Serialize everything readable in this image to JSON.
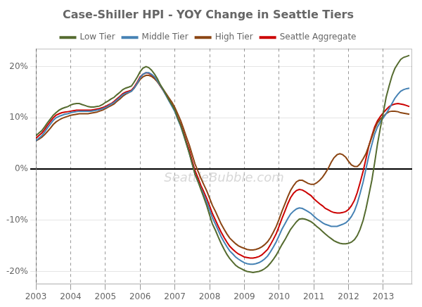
{
  "chart_data": {
    "type": "line",
    "title": "Case-Shiller HPI - YOY Change in Seattle Tiers",
    "annotations": [
      "SeattleBubble.com"
    ],
    "xlim": [
      2003.0,
      2013.83
    ],
    "ylim": [
      -0.225,
      0.235
    ],
    "xticks": [
      2003,
      2004,
      2005,
      2006,
      2007,
      2008,
      2009,
      2010,
      2011,
      2012,
      2013
    ],
    "yticks": [
      {
        "value": -0.2,
        "label": "-20%"
      },
      {
        "value": -0.1,
        "label": "-10%"
      },
      {
        "value": 0.0,
        "label": "0%"
      },
      {
        "value": 0.1,
        "label": "10%"
      },
      {
        "value": 0.2,
        "label": "20%"
      }
    ],
    "grid": true,
    "legend": "top",
    "x": [
      2003.0,
      2003.08,
      2003.17,
      2003.25,
      2003.33,
      2003.42,
      2003.5,
      2003.58,
      2003.67,
      2003.75,
      2003.83,
      2003.92,
      2004.0,
      2004.08,
      2004.17,
      2004.25,
      2004.33,
      2004.42,
      2004.5,
      2004.58,
      2004.67,
      2004.75,
      2004.83,
      2004.92,
      2005.0,
      2005.08,
      2005.17,
      2005.25,
      2005.33,
      2005.42,
      2005.5,
      2005.58,
      2005.67,
      2005.75,
      2005.83,
      2005.92,
      2006.0,
      2006.08,
      2006.17,
      2006.25,
      2006.33,
      2006.42,
      2006.5,
      2006.58,
      2006.67,
      2006.75,
      2006.83,
      2006.92,
      2007.0,
      2007.08,
      2007.17,
      2007.25,
      2007.33,
      2007.42,
      2007.5,
      2007.58,
      2007.67,
      2007.75,
      2007.83,
      2007.92,
      2008.0,
      2008.08,
      2008.17,
      2008.25,
      2008.33,
      2008.42,
      2008.5,
      2008.58,
      2008.67,
      2008.75,
      2008.83,
      2008.92,
      2009.0,
      2009.08,
      2009.17,
      2009.25,
      2009.33,
      2009.42,
      2009.5,
      2009.58,
      2009.67,
      2009.75,
      2009.83,
      2009.92,
      2010.0,
      2010.08,
      2010.17,
      2010.25,
      2010.33,
      2010.42,
      2010.5,
      2010.58,
      2010.67,
      2010.75,
      2010.83,
      2010.92,
      2011.0,
      2011.08,
      2011.17,
      2011.25,
      2011.33,
      2011.42,
      2011.5,
      2011.58,
      2011.67,
      2011.75,
      2011.83,
      2011.92,
      2012.0,
      2012.08,
      2012.17,
      2012.25,
      2012.33,
      2012.42,
      2012.5,
      2012.58,
      2012.67,
      2012.75,
      2012.83,
      2012.92,
      2013.0,
      2013.08,
      2013.17,
      2013.25,
      2013.33,
      2013.42,
      2013.5,
      2013.58,
      2013.67,
      2013.75
    ],
    "series": [
      {
        "name": "Low Tier",
        "color": "#556b2f",
        "values": [
          0.065,
          0.07,
          0.075,
          0.082,
          0.09,
          0.098,
          0.105,
          0.11,
          0.115,
          0.118,
          0.12,
          0.122,
          0.125,
          0.127,
          0.128,
          0.128,
          0.126,
          0.124,
          0.122,
          0.121,
          0.121,
          0.122,
          0.123,
          0.126,
          0.13,
          0.133,
          0.137,
          0.14,
          0.145,
          0.15,
          0.155,
          0.158,
          0.16,
          0.162,
          0.17,
          0.18,
          0.19,
          0.197,
          0.2,
          0.198,
          0.193,
          0.185,
          0.176,
          0.165,
          0.155,
          0.145,
          0.135,
          0.125,
          0.115,
          0.1,
          0.085,
          0.068,
          0.05,
          0.03,
          0.01,
          -0.01,
          -0.025,
          -0.04,
          -0.055,
          -0.072,
          -0.09,
          -0.107,
          -0.12,
          -0.133,
          -0.145,
          -0.157,
          -0.167,
          -0.175,
          -0.182,
          -0.188,
          -0.192,
          -0.195,
          -0.198,
          -0.2,
          -0.201,
          -0.202,
          -0.201,
          -0.2,
          -0.198,
          -0.195,
          -0.19,
          -0.184,
          -0.177,
          -0.168,
          -0.158,
          -0.148,
          -0.138,
          -0.128,
          -0.118,
          -0.11,
          -0.103,
          -0.098,
          -0.097,
          -0.098,
          -0.1,
          -0.103,
          -0.107,
          -0.112,
          -0.117,
          -0.122,
          -0.127,
          -0.132,
          -0.136,
          -0.14,
          -0.143,
          -0.145,
          -0.146,
          -0.146,
          -0.145,
          -0.143,
          -0.138,
          -0.13,
          -0.118,
          -0.1,
          -0.078,
          -0.052,
          -0.022,
          0.012,
          0.048,
          0.082,
          0.11,
          0.14,
          0.163,
          0.182,
          0.196,
          0.206,
          0.214,
          0.218,
          0.22,
          0.222
        ]
      },
      {
        "name": "Middle Tier",
        "color": "#4682b4",
        "values": [
          0.055,
          0.06,
          0.065,
          0.072,
          0.08,
          0.088,
          0.095,
          0.1,
          0.103,
          0.105,
          0.107,
          0.108,
          0.11,
          0.111,
          0.112,
          0.113,
          0.113,
          0.113,
          0.113,
          0.113,
          0.114,
          0.115,
          0.116,
          0.118,
          0.12,
          0.123,
          0.127,
          0.13,
          0.135,
          0.14,
          0.145,
          0.148,
          0.15,
          0.152,
          0.158,
          0.168,
          0.178,
          0.185,
          0.188,
          0.188,
          0.185,
          0.18,
          0.172,
          0.163,
          0.153,
          0.143,
          0.133,
          0.122,
          0.112,
          0.098,
          0.083,
          0.067,
          0.05,
          0.03,
          0.01,
          -0.01,
          -0.025,
          -0.038,
          -0.05,
          -0.065,
          -0.08,
          -0.095,
          -0.108,
          -0.12,
          -0.132,
          -0.143,
          -0.152,
          -0.16,
          -0.166,
          -0.172,
          -0.176,
          -0.18,
          -0.183,
          -0.185,
          -0.186,
          -0.186,
          -0.185,
          -0.183,
          -0.18,
          -0.176,
          -0.17,
          -0.162,
          -0.153,
          -0.142,
          -0.13,
          -0.118,
          -0.107,
          -0.097,
          -0.088,
          -0.082,
          -0.078,
          -0.076,
          -0.077,
          -0.08,
          -0.083,
          -0.087,
          -0.092,
          -0.097,
          -0.101,
          -0.105,
          -0.108,
          -0.11,
          -0.112,
          -0.112,
          -0.112,
          -0.11,
          -0.108,
          -0.105,
          -0.1,
          -0.093,
          -0.082,
          -0.067,
          -0.048,
          -0.025,
          0.0,
          0.025,
          0.048,
          0.068,
          0.082,
          0.093,
          0.1,
          0.108,
          0.118,
          0.128,
          0.138,
          0.146,
          0.152,
          0.155,
          0.157,
          0.158
        ]
      },
      {
        "name": "High Tier",
        "color": "#8b4513",
        "values": [
          0.055,
          0.058,
          0.062,
          0.067,
          0.073,
          0.08,
          0.087,
          0.092,
          0.096,
          0.099,
          0.101,
          0.103,
          0.105,
          0.106,
          0.107,
          0.108,
          0.108,
          0.108,
          0.108,
          0.109,
          0.11,
          0.111,
          0.113,
          0.115,
          0.118,
          0.121,
          0.124,
          0.127,
          0.132,
          0.137,
          0.142,
          0.146,
          0.149,
          0.152,
          0.158,
          0.167,
          0.175,
          0.18,
          0.183,
          0.183,
          0.181,
          0.176,
          0.17,
          0.163,
          0.155,
          0.147,
          0.139,
          0.13,
          0.12,
          0.108,
          0.094,
          0.079,
          0.063,
          0.046,
          0.028,
          0.01,
          -0.005,
          -0.018,
          -0.03,
          -0.043,
          -0.057,
          -0.071,
          -0.083,
          -0.095,
          -0.107,
          -0.118,
          -0.127,
          -0.135,
          -0.141,
          -0.146,
          -0.15,
          -0.153,
          -0.155,
          -0.157,
          -0.158,
          -0.158,
          -0.157,
          -0.155,
          -0.152,
          -0.148,
          -0.142,
          -0.134,
          -0.124,
          -0.112,
          -0.098,
          -0.083,
          -0.068,
          -0.054,
          -0.042,
          -0.032,
          -0.025,
          -0.022,
          -0.022,
          -0.025,
          -0.028,
          -0.03,
          -0.03,
          -0.027,
          -0.022,
          -0.016,
          -0.008,
          0.002,
          0.013,
          0.022,
          0.028,
          0.03,
          0.028,
          0.023,
          0.015,
          0.008,
          0.005,
          0.005,
          0.01,
          0.02,
          0.03,
          0.045,
          0.062,
          0.078,
          0.09,
          0.098,
          0.103,
          0.108,
          0.112,
          0.113,
          0.113,
          0.112,
          0.11,
          0.109,
          0.108,
          0.107
        ]
      },
      {
        "name": "Seattle Aggregate",
        "color": "#cc0000",
        "values": [
          0.06,
          0.065,
          0.07,
          0.077,
          0.085,
          0.093,
          0.1,
          0.105,
          0.108,
          0.11,
          0.111,
          0.112,
          0.113,
          0.114,
          0.115,
          0.115,
          0.115,
          0.115,
          0.115,
          0.115,
          0.116,
          0.117,
          0.118,
          0.12,
          0.122,
          0.125,
          0.128,
          0.132,
          0.137,
          0.142,
          0.147,
          0.15,
          0.152,
          0.154,
          0.16,
          0.17,
          0.18,
          0.185,
          0.188,
          0.187,
          0.184,
          0.178,
          0.171,
          0.162,
          0.153,
          0.144,
          0.135,
          0.125,
          0.115,
          0.101,
          0.087,
          0.071,
          0.054,
          0.036,
          0.016,
          -0.003,
          -0.018,
          -0.032,
          -0.044,
          -0.058,
          -0.072,
          -0.087,
          -0.1,
          -0.112,
          -0.123,
          -0.134,
          -0.143,
          -0.151,
          -0.157,
          -0.162,
          -0.166,
          -0.169,
          -0.172,
          -0.173,
          -0.174,
          -0.174,
          -0.173,
          -0.171,
          -0.168,
          -0.163,
          -0.157,
          -0.148,
          -0.138,
          -0.126,
          -0.112,
          -0.097,
          -0.082,
          -0.068,
          -0.056,
          -0.047,
          -0.042,
          -0.04,
          -0.041,
          -0.044,
          -0.048,
          -0.052,
          -0.058,
          -0.063,
          -0.068,
          -0.072,
          -0.077,
          -0.08,
          -0.083,
          -0.085,
          -0.086,
          -0.086,
          -0.085,
          -0.083,
          -0.079,
          -0.072,
          -0.061,
          -0.046,
          -0.027,
          -0.004,
          0.02,
          0.044,
          0.065,
          0.082,
          0.094,
          0.103,
          0.11,
          0.116,
          0.122,
          0.125,
          0.127,
          0.128,
          0.127,
          0.126,
          0.124,
          0.122
        ]
      }
    ]
  }
}
